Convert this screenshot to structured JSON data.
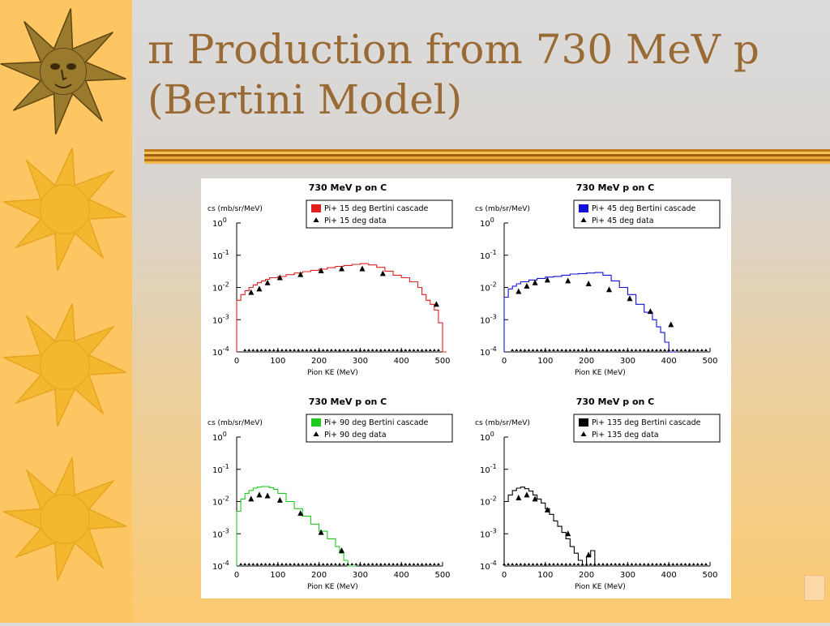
{
  "slide": {
    "title_line1": "π Production from 730 MeV p",
    "title_line2": "(Bertini Model)"
  },
  "colors": {
    "title": "#9a6a35",
    "left_strip": "#fdc662",
    "sun_large": "#9a7b2e",
    "sun_small": "#f3b82f"
  },
  "icons": [
    "sun-face-icon",
    "sun-icon",
    "sun-icon",
    "sun-icon"
  ],
  "chart_data": [
    {
      "type": "line",
      "title": "730 MeV p on C",
      "xlabel": "Pion KE (MeV)",
      "ylabel": "cs (mb/sr/MeV)",
      "xlim": [
        0,
        500
      ],
      "ylim_log10": [
        -4,
        0
      ],
      "y_scale": "log",
      "x_ticks": [
        "0",
        "100",
        "200",
        "300",
        "400",
        "500"
      ],
      "y_tick_exponents": [
        "0",
        "-1",
        "-2",
        "-3",
        "-4"
      ],
      "legend": "top-right",
      "series": [
        {
          "name": "Pi+ 15 deg Bertini cascade",
          "color": "#e02020",
          "kind": "histogram",
          "x": [
            0,
            10,
            20,
            30,
            40,
            50,
            60,
            70,
            80,
            100,
            120,
            140,
            160,
            180,
            200,
            220,
            240,
            260,
            280,
            300,
            320,
            340,
            360,
            380,
            400,
            420,
            440,
            450,
            460,
            470,
            480,
            490,
            500
          ],
          "values": [
            0.004,
            0.006,
            0.008,
            0.01,
            0.012,
            0.014,
            0.016,
            0.018,
            0.02,
            0.022,
            0.025,
            0.028,
            0.031,
            0.034,
            0.037,
            0.041,
            0.045,
            0.048,
            0.052,
            0.055,
            0.05,
            0.042,
            0.032,
            0.024,
            0.02,
            0.015,
            0.01,
            0.006,
            0.004,
            0.003,
            0.002,
            0.0008,
            0.0001
          ]
        },
        {
          "name": "Pi+ 15 deg data",
          "color": "#000000",
          "kind": "points",
          "x": [
            35,
            55,
            75,
            105,
            155,
            205,
            255,
            305,
            355,
            485
          ],
          "values": [
            0.007,
            0.009,
            0.014,
            0.02,
            0.025,
            0.033,
            0.038,
            0.038,
            0.027,
            0.003
          ]
        }
      ],
      "zero_markers_x": [
        20,
        30,
        40,
        50,
        60,
        70,
        80,
        90,
        100,
        110,
        120,
        130,
        140,
        150,
        160,
        170,
        180,
        190,
        200,
        210,
        220,
        230,
        240,
        250,
        260,
        270,
        280,
        290,
        300,
        310,
        320,
        330,
        340,
        350,
        360,
        370,
        380,
        390,
        400,
        410,
        420,
        430,
        440,
        450,
        460,
        470,
        480,
        490
      ]
    },
    {
      "type": "line",
      "title": "730 MeV p on C",
      "xlabel": "Pion KE (MeV)",
      "ylabel": "cs (mb/sr/MeV)",
      "xlim": [
        0,
        500
      ],
      "ylim_log10": [
        -4,
        0
      ],
      "y_scale": "log",
      "x_ticks": [
        "0",
        "100",
        "200",
        "300",
        "400",
        "500"
      ],
      "y_tick_exponents": [
        "0",
        "-1",
        "-2",
        "-3",
        "-4"
      ],
      "legend": "top-right",
      "series": [
        {
          "name": "Pi+ 45 deg Bertini cascade",
          "color": "#1010d8",
          "kind": "histogram",
          "x": [
            0,
            10,
            20,
            30,
            40,
            60,
            80,
            100,
            120,
            140,
            160,
            180,
            200,
            220,
            240,
            260,
            280,
            300,
            320,
            340,
            360,
            370,
            380,
            390,
            400,
            410
          ],
          "values": [
            0.005,
            0.009,
            0.011,
            0.013,
            0.015,
            0.017,
            0.019,
            0.021,
            0.022,
            0.024,
            0.026,
            0.027,
            0.028,
            0.029,
            0.024,
            0.016,
            0.01,
            0.006,
            0.003,
            0.0017,
            0.001,
            0.0006,
            0.0004,
            0.0002,
            0.0001,
            0.0001
          ]
        },
        {
          "name": "Pi+ 45 deg data",
          "color": "#000000",
          "kind": "points",
          "x": [
            35,
            55,
            75,
            105,
            155,
            205,
            255,
            305,
            355,
            405
          ],
          "values": [
            0.0075,
            0.011,
            0.014,
            0.017,
            0.016,
            0.013,
            0.0085,
            0.0045,
            0.0018,
            0.0007
          ]
        }
      ],
      "zero_markers_x": [
        20,
        30,
        40,
        50,
        60,
        70,
        80,
        90,
        100,
        110,
        120,
        130,
        140,
        150,
        160,
        170,
        180,
        190,
        200,
        210,
        220,
        230,
        240,
        250,
        260,
        270,
        280,
        290,
        300,
        310,
        320,
        330,
        340,
        350,
        360,
        370,
        380,
        390,
        400,
        410,
        420,
        430,
        440,
        450,
        460,
        470,
        480,
        490
      ]
    },
    {
      "type": "line",
      "title": "730 MeV p on C",
      "xlabel": "Pion KE (MeV)",
      "ylabel": "cs (mb/sr/MeV)",
      "xlim": [
        0,
        500
      ],
      "ylim_log10": [
        -4,
        0
      ],
      "y_scale": "log",
      "x_ticks": [
        "0",
        "100",
        "200",
        "300",
        "400",
        "500"
      ],
      "y_tick_exponents": [
        "0",
        "-1",
        "-2",
        "-3",
        "-4"
      ],
      "legend": "top-right",
      "series": [
        {
          "name": "Pi+ 90 deg Bertini cascade",
          "color": "#20c820",
          "kind": "histogram",
          "x": [
            0,
            10,
            20,
            30,
            40,
            50,
            60,
            70,
            80,
            90,
            100,
            120,
            140,
            160,
            180,
            200,
            220,
            240,
            250,
            260,
            270,
            280
          ],
          "values": [
            0.005,
            0.012,
            0.018,
            0.022,
            0.026,
            0.028,
            0.029,
            0.029,
            0.027,
            0.024,
            0.018,
            0.01,
            0.006,
            0.0035,
            0.002,
            0.0012,
            0.0007,
            0.0004,
            0.00025,
            0.00015,
            0.0001,
            0.0001
          ]
        },
        {
          "name": "Pi+ 90 deg data",
          "color": "#000000",
          "kind": "points",
          "x": [
            35,
            55,
            75,
            105,
            155,
            205,
            255
          ],
          "values": [
            0.012,
            0.016,
            0.015,
            0.011,
            0.0043,
            0.0011,
            0.0003
          ]
        }
      ],
      "zero_markers_x": [
        10,
        20,
        30,
        40,
        50,
        60,
        70,
        80,
        90,
        100,
        110,
        120,
        130,
        140,
        150,
        160,
        170,
        180,
        190,
        200,
        210,
        220,
        230,
        240,
        250,
        260,
        270,
        280,
        290,
        300,
        310,
        320,
        330,
        340,
        350,
        360,
        370,
        380,
        390,
        400,
        410,
        420,
        430,
        440,
        450,
        460,
        470,
        480,
        490
      ]
    },
    {
      "type": "line",
      "title": "730 MeV p on C",
      "xlabel": "Pion KE (MeV)",
      "ylabel": "cs (mb/sr/MeV)",
      "xlim": [
        0,
        500
      ],
      "ylim_log10": [
        -4,
        0
      ],
      "y_scale": "log",
      "x_ticks": [
        "0",
        "100",
        "200",
        "300",
        "400",
        "500"
      ],
      "y_tick_exponents": [
        "0",
        "-1",
        "-2",
        "-3",
        "-4"
      ],
      "legend": "top-right",
      "series": [
        {
          "name": "Pi+ 135 deg Bertini cascade",
          "color": "#000000",
          "kind": "histogram",
          "x": [
            0,
            10,
            20,
            30,
            40,
            50,
            60,
            70,
            80,
            90,
            100,
            110,
            120,
            130,
            140,
            150,
            160,
            170,
            180,
            190,
            200,
            210,
            220
          ],
          "values": [
            0.01,
            0.016,
            0.022,
            0.026,
            0.028,
            0.025,
            0.021,
            0.016,
            0.012,
            0.009,
            0.006,
            0.004,
            0.0025,
            0.0017,
            0.0011,
            0.0007,
            0.0004,
            0.00025,
            0.00015,
            0.0001,
            0.0002,
            0.0003,
            0.0001
          ]
        },
        {
          "name": "Pi+ 135 deg data",
          "color": "#000000",
          "kind": "points",
          "x": [
            35,
            55,
            75,
            105,
            155,
            205
          ],
          "values": [
            0.013,
            0.016,
            0.012,
            0.0055,
            0.001,
            0.00022
          ]
        }
      ],
      "zero_markers_x": [
        0,
        10,
        20,
        30,
        40,
        50,
        60,
        70,
        80,
        90,
        100,
        110,
        120,
        130,
        140,
        150,
        160,
        170,
        180,
        190,
        200,
        210,
        220,
        230,
        240,
        250,
        260,
        270,
        280,
        290,
        300,
        310,
        320,
        330,
        340,
        350,
        360,
        370,
        380,
        390,
        400,
        410,
        420,
        430,
        440,
        450,
        460,
        470,
        480,
        490
      ]
    }
  ]
}
